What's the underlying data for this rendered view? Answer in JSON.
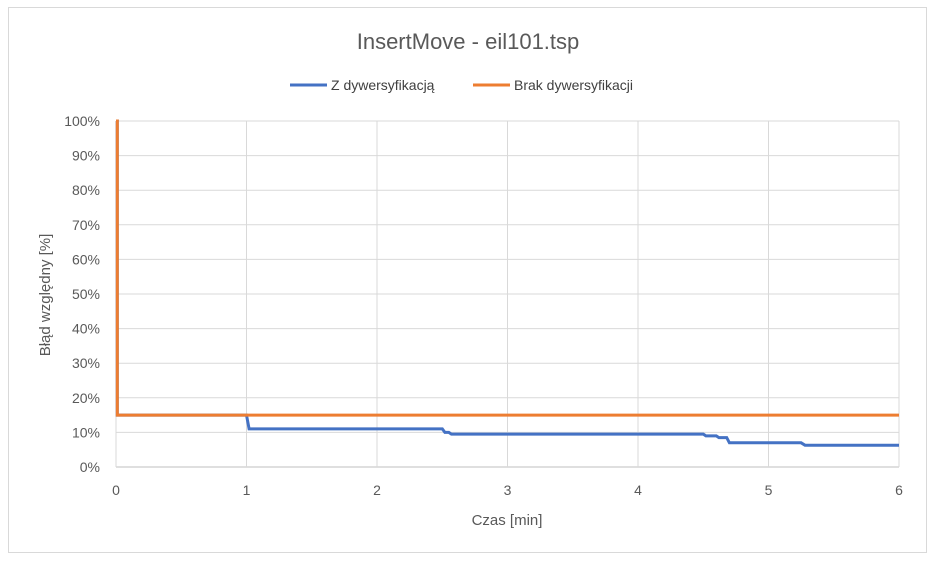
{
  "chart_data": {
    "type": "line",
    "title": "InsertMove - eil101.tsp",
    "xlabel": "Czas [min]",
    "ylabel": "Błąd względny [%]",
    "xlim": [
      0,
      6
    ],
    "ylim": [
      0,
      100
    ],
    "x_ticks": [
      "0",
      "1",
      "2",
      "3",
      "4",
      "5",
      "6"
    ],
    "y_ticks": [
      "0%",
      "10%",
      "20%",
      "30%",
      "40%",
      "50%",
      "60%",
      "70%",
      "80%",
      "90%",
      "100%"
    ],
    "grid": true,
    "legend_position": "top",
    "series": [
      {
        "name": "Z dywersyfikacją",
        "color": "#4472c4",
        "points": [
          [
            0,
            100
          ],
          [
            0.01,
            100
          ],
          [
            0.01,
            15
          ],
          [
            1.0,
            15
          ],
          [
            1.02,
            11
          ],
          [
            2.5,
            11
          ],
          [
            2.52,
            10
          ],
          [
            2.55,
            10
          ],
          [
            2.57,
            9.5
          ],
          [
            4.5,
            9.5
          ],
          [
            4.52,
            9
          ],
          [
            4.6,
            9
          ],
          [
            4.62,
            8.5
          ],
          [
            4.68,
            8.5
          ],
          [
            4.7,
            7
          ],
          [
            5.25,
            7
          ],
          [
            5.28,
            6.3
          ],
          [
            6.0,
            6.3
          ]
        ]
      },
      {
        "name": "Brak dywersyfikacji",
        "color": "#ed7d31",
        "points": [
          [
            0,
            100
          ],
          [
            0.01,
            100
          ],
          [
            0.01,
            15
          ],
          [
            6.0,
            15
          ]
        ]
      }
    ]
  }
}
